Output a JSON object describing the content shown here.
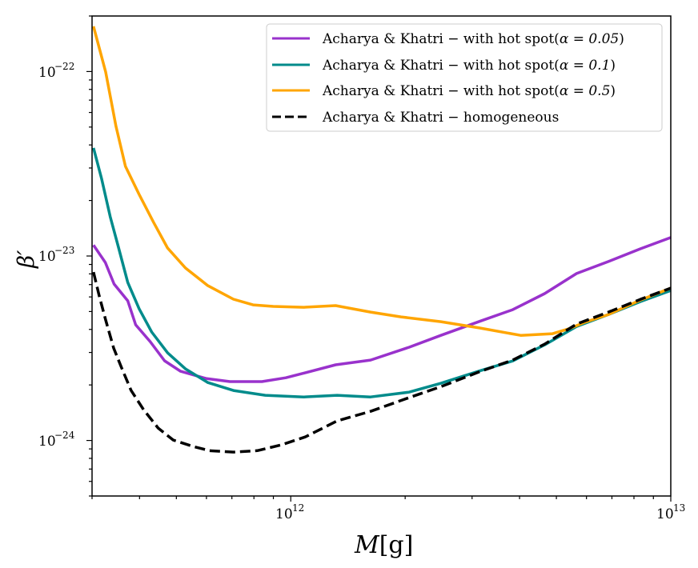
{
  "chart_data": {
    "type": "line",
    "title": "",
    "xlabel": "M[g]",
    "xlabel_italic": "M",
    "xlabel_unit": "[g]",
    "ylabel": "β′",
    "xscale": "log",
    "yscale": "log",
    "xlim": [
      300000000000.0,
      10000000000000.0
    ],
    "ylim": [
      5e-25,
      2e-22
    ],
    "x_ticks": [
      {
        "value": 1000000000000.0,
        "base": "10",
        "exp": "12"
      },
      {
        "value": 10000000000000.0,
        "base": "10",
        "exp": "13"
      }
    ],
    "y_ticks": [
      {
        "value": 1e-22,
        "base": "10",
        "exp": "−22"
      },
      {
        "value": 1e-23,
        "base": "10",
        "exp": "−23"
      },
      {
        "value": 1e-24,
        "base": "10",
        "exp": "−24"
      }
    ],
    "grid": false,
    "legend_position": "top-right",
    "series": [
      {
        "name": "Acharya & Khatri – with hot spot(α = 0.05)",
        "label_main": "Acharya & Khatri − with hot spot(",
        "label_alpha": "α = 0.05",
        "label_close": ")",
        "color": "#9932cc",
        "style": "solid",
        "log10_x": [
          11.481,
          11.512,
          11.535,
          11.571,
          11.592,
          11.63,
          11.668,
          11.71,
          11.777,
          11.84,
          11.924,
          11.987,
          12.029,
          12.118,
          12.21,
          12.311,
          12.395,
          12.5,
          12.584,
          12.668,
          12.752,
          12.836,
          12.92,
          13.0
        ],
        "log10_y": [
          -22.941,
          -23.035,
          -23.152,
          -23.243,
          -23.373,
          -23.464,
          -23.568,
          -23.625,
          -23.664,
          -23.681,
          -23.681,
          -23.66,
          -23.638,
          -23.59,
          -23.564,
          -23.495,
          -23.43,
          -23.352,
          -23.291,
          -23.204,
          -23.095,
          -23.03,
          -22.961,
          -22.9
        ]
      },
      {
        "name": "Acharya & Khatri – with hot spot(α = 0.1)",
        "label_main": "Acharya & Khatri − with hot spot(",
        "label_alpha": "α = 0.1",
        "label_close": ")",
        "color": "#008b8b",
        "style": "solid",
        "log10_x": [
          11.481,
          11.502,
          11.525,
          11.546,
          11.571,
          11.601,
          11.634,
          11.676,
          11.723,
          11.782,
          11.849,
          11.933,
          12.034,
          12.122,
          12.21,
          12.311,
          12.395,
          12.5,
          12.584,
          12.668,
          12.752,
          12.836,
          12.92,
          13.0
        ],
        "log10_y": [
          -22.414,
          -22.579,
          -22.787,
          -22.948,
          -23.143,
          -23.286,
          -23.412,
          -23.525,
          -23.612,
          -23.686,
          -23.729,
          -23.755,
          -23.764,
          -23.755,
          -23.764,
          -23.738,
          -23.69,
          -23.621,
          -23.569,
          -23.482,
          -23.382,
          -23.317,
          -23.247,
          -23.187
        ]
      },
      {
        "name": "Acharya & Khatri – with hot spot(α = 0.5)",
        "label_main": "Acharya & Khatri − with hot spot(",
        "label_alpha": "α = 0.5",
        "label_close": ")",
        "color": "#ffa500",
        "style": "solid",
        "log10_x": [
          11.481,
          11.513,
          11.54,
          11.565,
          11.601,
          11.639,
          11.676,
          11.723,
          11.782,
          11.849,
          11.901,
          11.954,
          12.034,
          12.118,
          12.21,
          12.29,
          12.395,
          12.496,
          12.605,
          12.689,
          12.731,
          12.773,
          12.836,
          12.92,
          13.0
        ],
        "log10_y": [
          -21.755,
          -22.002,
          -22.297,
          -22.514,
          -22.666,
          -22.818,
          -22.957,
          -23.065,
          -23.161,
          -23.234,
          -23.265,
          -23.273,
          -23.278,
          -23.269,
          -23.304,
          -23.33,
          -23.356,
          -23.39,
          -23.43,
          -23.421,
          -23.395,
          -23.36,
          -23.317,
          -23.239,
          -23.174
        ]
      },
      {
        "name": "Acharya & Khatri – homogeneous",
        "label_main": "Acharya & Khatri − homogeneous",
        "label_alpha": "",
        "label_close": "",
        "color": "#000000",
        "style": "dashed",
        "log10_x": [
          11.481,
          11.496,
          11.513,
          11.534,
          11.555,
          11.58,
          11.613,
          11.651,
          11.691,
          11.744,
          11.786,
          11.849,
          11.912,
          11.975,
          12.038,
          12.122,
          12.21,
          12.311,
          12.395,
          12.5,
          12.584,
          12.668,
          12.752,
          12.836,
          12.92,
          13.0
        ],
        "log10_y": [
          -23.087,
          -23.217,
          -23.347,
          -23.499,
          -23.607,
          -23.729,
          -23.834,
          -23.933,
          -23.998,
          -24.033,
          -24.055,
          -24.063,
          -24.055,
          -24.024,
          -23.981,
          -23.894,
          -23.842,
          -23.768,
          -23.708,
          -23.625,
          -23.564,
          -23.478,
          -23.369,
          -23.304,
          -23.235,
          -23.174
        ]
      }
    ]
  }
}
